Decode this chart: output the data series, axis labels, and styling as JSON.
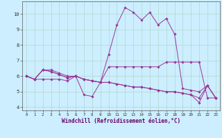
{
  "title": "",
  "xlabel": "Windchill (Refroidissement éolien,°C)",
  "ylabel": "",
  "background_color": "#cceeff",
  "grid_color": "#b0d8cc",
  "line_color": "#993399",
  "xlim": [
    -0.5,
    23.5
  ],
  "ylim": [
    3.8,
    10.8
  ],
  "xticks": [
    0,
    1,
    2,
    3,
    4,
    5,
    6,
    7,
    8,
    9,
    10,
    11,
    12,
    13,
    14,
    15,
    16,
    17,
    18,
    19,
    20,
    21,
    22,
    23
  ],
  "yticks": [
    4,
    5,
    6,
    7,
    8,
    9,
    10
  ],
  "series": [
    [
      6.0,
      5.8,
      5.8,
      5.8,
      5.8,
      5.7,
      6.0,
      4.8,
      4.7,
      5.6,
      5.6,
      5.5,
      5.4,
      5.3,
      5.3,
      5.2,
      5.1,
      5.0,
      5.0,
      4.9,
      4.8,
      4.6,
      5.4,
      4.6
    ],
    [
      6.0,
      5.8,
      6.4,
      6.4,
      6.2,
      6.0,
      6.0,
      5.8,
      5.7,
      5.6,
      6.6,
      6.6,
      6.6,
      6.6,
      6.6,
      6.6,
      6.6,
      6.9,
      6.9,
      6.9,
      6.9,
      6.9,
      4.6,
      4.6
    ],
    [
      6.0,
      5.8,
      6.4,
      6.3,
      6.1,
      5.9,
      6.0,
      5.8,
      5.7,
      5.6,
      7.4,
      9.3,
      10.4,
      10.1,
      9.6,
      10.1,
      9.3,
      9.7,
      8.7,
      5.2,
      5.1,
      5.0,
      5.4,
      4.6
    ],
    [
      6.0,
      5.8,
      6.4,
      6.3,
      6.1,
      5.9,
      6.0,
      5.8,
      5.7,
      5.6,
      5.6,
      5.5,
      5.4,
      5.3,
      5.3,
      5.2,
      5.1,
      5.0,
      5.0,
      4.9,
      4.8,
      4.3,
      5.4,
      4.6
    ]
  ]
}
